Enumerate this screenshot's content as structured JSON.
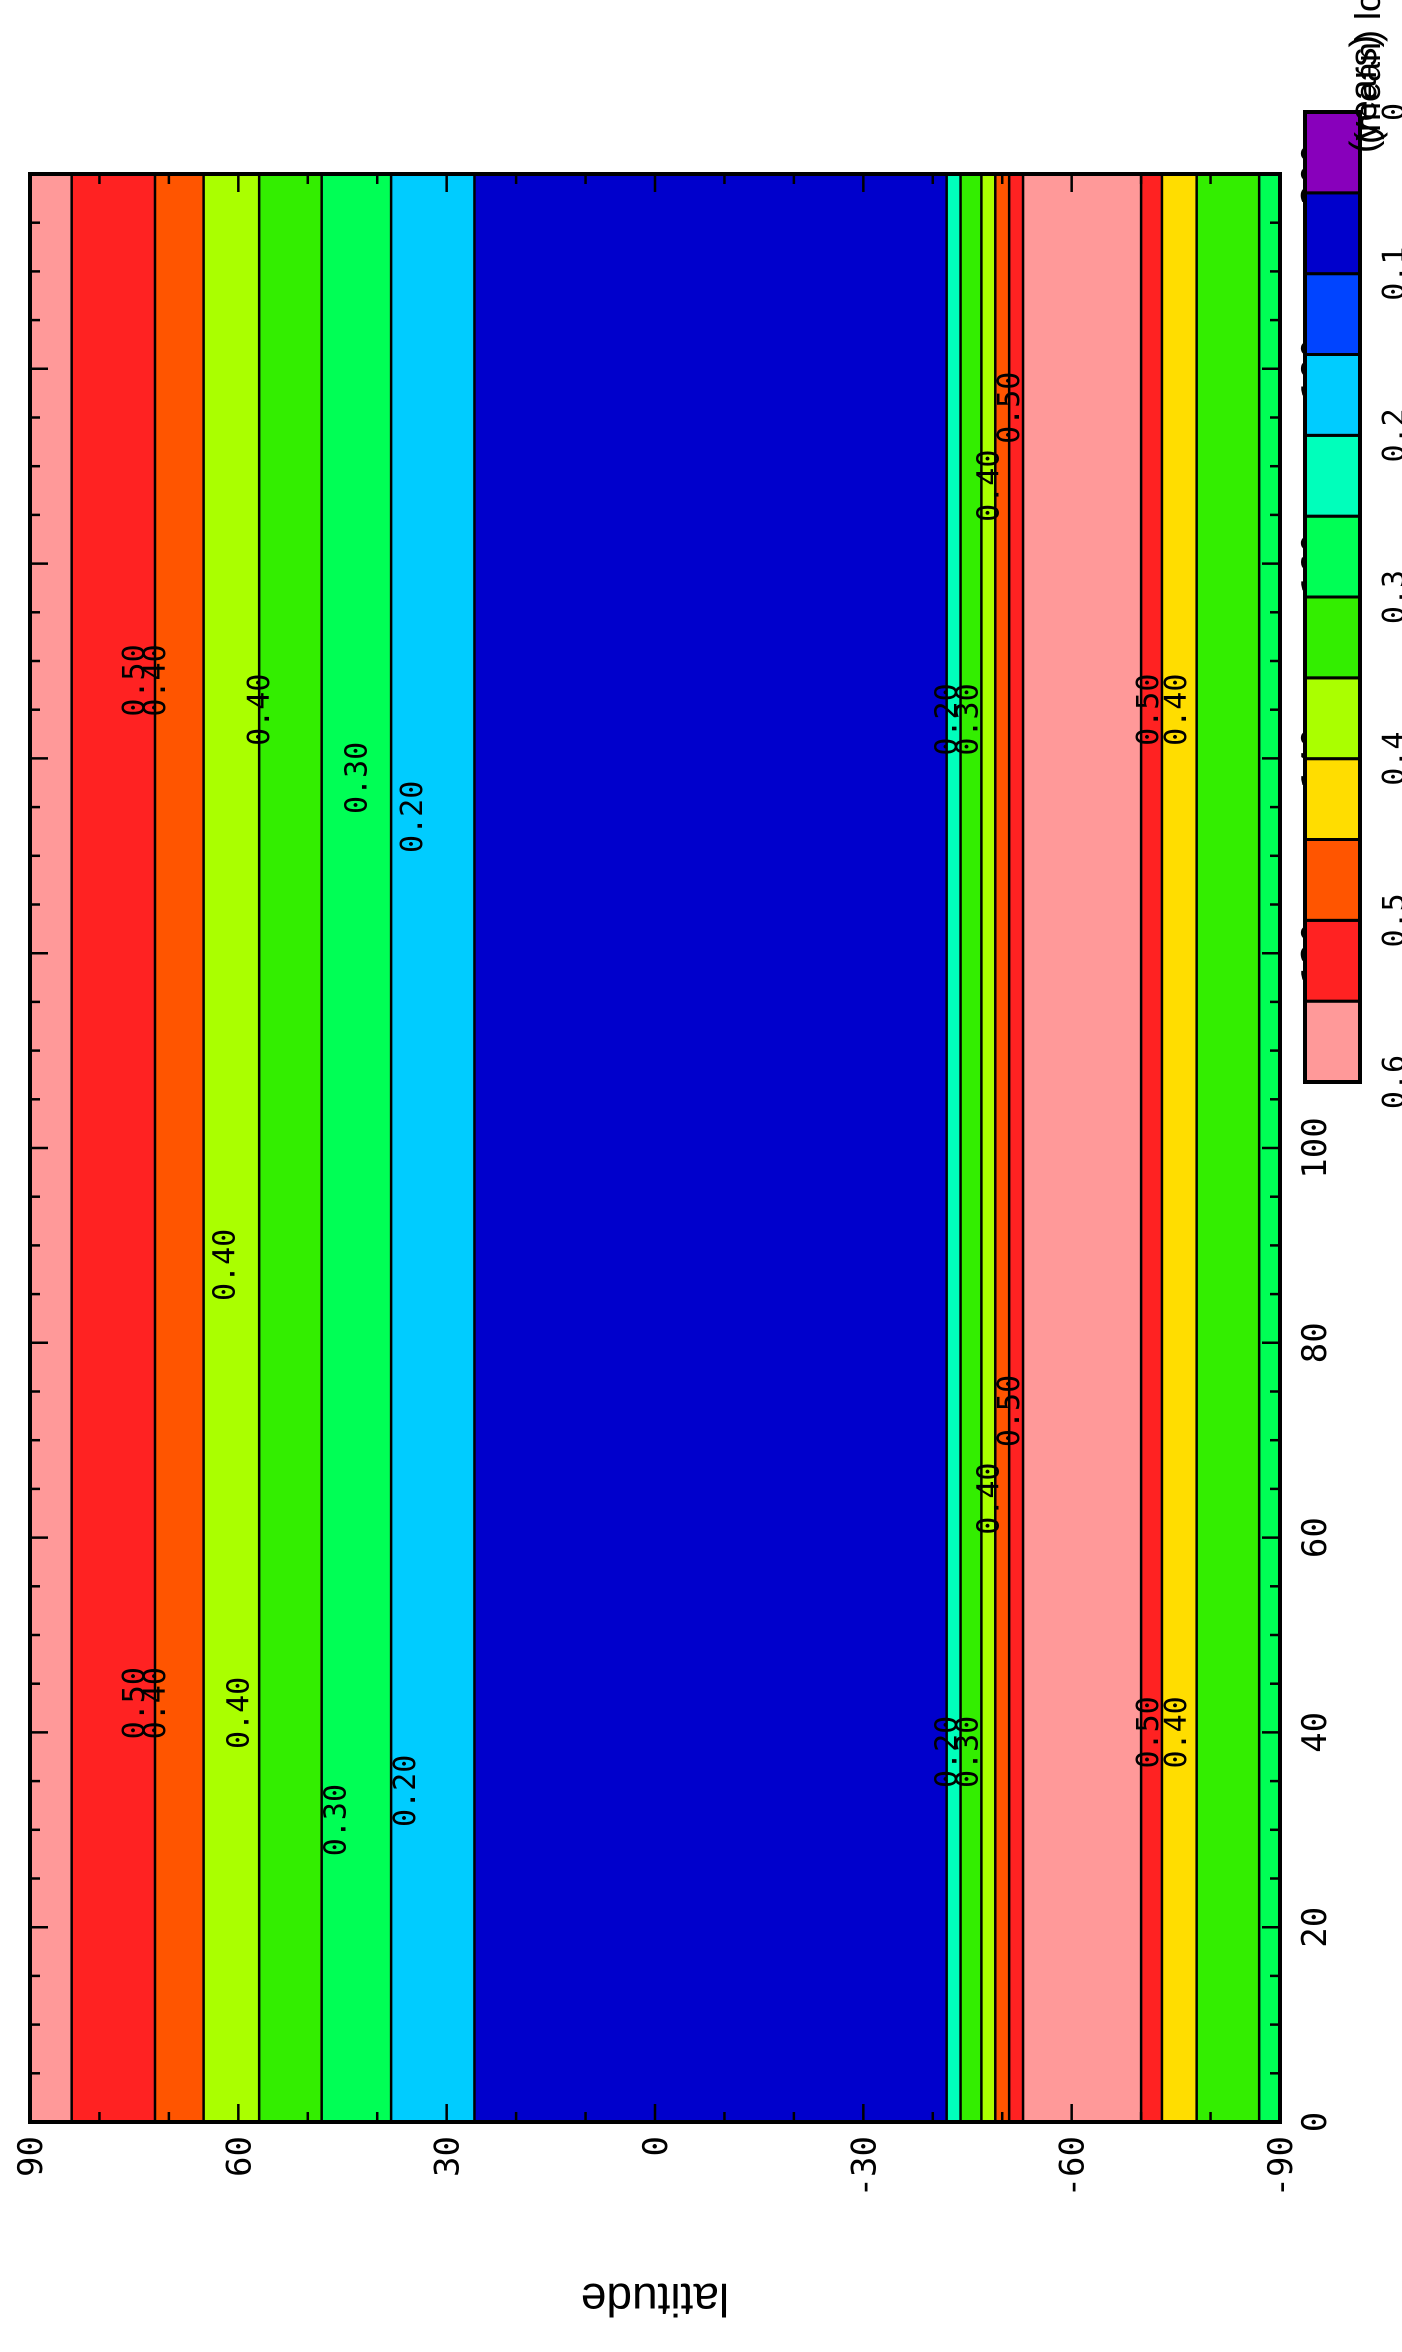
{
  "chart_data": {
    "type": "heatmap",
    "subtype": "zonal-mean contour plot (time vs latitude), rotated 90 degrees",
    "title_partial": "(mean) lo",
    "x_axis": {
      "label": "(years)",
      "range": [
        0,
        200
      ],
      "ticks": [
        0,
        20,
        40,
        60,
        80,
        100,
        120,
        140,
        160,
        180,
        200
      ],
      "tick_labels": [
        "0",
        "20",
        "40",
        "60",
        "80",
        "100",
        "120",
        "140",
        "160",
        "180",
        "200"
      ]
    },
    "y_axis": {
      "label": "latitude",
      "range": [
        -90,
        90
      ],
      "ticks": [
        90,
        60,
        30,
        0,
        -30,
        -60,
        -90
      ],
      "tick_labels": [
        "90",
        "60",
        "30",
        "0",
        "-30",
        "-60",
        "-90"
      ]
    },
    "colorbar": {
      "levels": [
        0,
        0.05,
        0.1,
        0.15,
        0.2,
        0.25,
        0.3,
        0.35,
        0.4,
        0.45,
        0.5,
        0.55,
        0.6
      ],
      "tick_values": [
        0.6,
        0.5,
        0.4,
        0.3,
        0.2,
        0.1,
        0
      ],
      "tick_labels": [
        "0.6",
        "0.5",
        "0.4",
        "0.3",
        "0.2",
        "0.1",
        "0"
      ],
      "colors_high_to_low": [
        "#ff9999",
        "#ff2222",
        "#ff5500",
        "#ffdd00",
        "#aaff00",
        "#33ee00",
        "#00ff55",
        "#00ffbb",
        "#00ccff",
        "#0044ff",
        "#0000cc",
        "#8800bb"
      ]
    },
    "zonal_bands": [
      {
        "lat": [
          84,
          90
        ],
        "value": 0.6
      },
      {
        "lat": [
          72,
          84
        ],
        "value": 0.5
      },
      {
        "lat": [
          65,
          72
        ],
        "value": 0.45
      },
      {
        "lat": [
          57,
          65
        ],
        "value": 0.38
      },
      {
        "lat": [
          48,
          57
        ],
        "value": 0.33
      },
      {
        "lat": [
          38,
          48
        ],
        "value": 0.28
      },
      {
        "lat": [
          26,
          38
        ],
        "value": 0.18
      },
      {
        "lat": [
          -42,
          26
        ],
        "value": 0.08
      },
      {
        "lat": [
          -44,
          -42
        ],
        "value": 0.2
      },
      {
        "lat": [
          -47,
          -44
        ],
        "value": 0.3
      },
      {
        "lat": [
          -49,
          -47
        ],
        "value": 0.38
      },
      {
        "lat": [
          -51,
          -49
        ],
        "value": 0.45
      },
      {
        "lat": [
          -53,
          -51
        ],
        "value": 0.5
      },
      {
        "lat": [
          -70,
          -53
        ],
        "value": 0.6
      },
      {
        "lat": [
          -73,
          -70
        ],
        "value": 0.52
      },
      {
        "lat": [
          -78,
          -73
        ],
        "value": 0.42
      },
      {
        "lat": [
          -87,
          -78
        ],
        "value": 0.3
      },
      {
        "lat": [
          -90,
          -87
        ],
        "value": 0.25
      }
    ],
    "contour_labels": [
      {
        "text": "0.50",
        "x": 43,
        "lat": 75
      },
      {
        "text": "0.40",
        "x": 43,
        "lat": 72
      },
      {
        "text": "0.40",
        "x": 42,
        "lat": 60
      },
      {
        "text": "0.30",
        "x": 31,
        "lat": 46
      },
      {
        "text": "0.20",
        "x": 34,
        "lat": 36
      },
      {
        "text": "0.40",
        "x": 88,
        "lat": 62
      },
      {
        "text": "0.50",
        "x": 148,
        "lat": 75
      },
      {
        "text": "0.40",
        "x": 148,
        "lat": 72
      },
      {
        "text": "0.40",
        "x": 145,
        "lat": 57
      },
      {
        "text": "0.30",
        "x": 138,
        "lat": 43
      },
      {
        "text": "0.20",
        "x": 134,
        "lat": 35
      },
      {
        "text": "0.20",
        "x": 38,
        "lat": -42
      },
      {
        "text": "0.30",
        "x": 38,
        "lat": -45
      },
      {
        "text": "0.40",
        "x": 64,
        "lat": -48
      },
      {
        "text": "0.50",
        "x": 73,
        "lat": -51
      },
      {
        "text": "0.20",
        "x": 144,
        "lat": -42
      },
      {
        "text": "0.30",
        "x": 144,
        "lat": -45
      },
      {
        "text": "0.40",
        "x": 168,
        "lat": -48
      },
      {
        "text": "0.50",
        "x": 176,
        "lat": -51
      },
      {
        "text": "0.50",
        "x": 40,
        "lat": -71
      },
      {
        "text": "0.40",
        "x": 40,
        "lat": -75
      },
      {
        "text": "0.50",
        "x": 145,
        "lat": -71
      },
      {
        "text": "0.40",
        "x": 145,
        "lat": -75
      }
    ]
  }
}
